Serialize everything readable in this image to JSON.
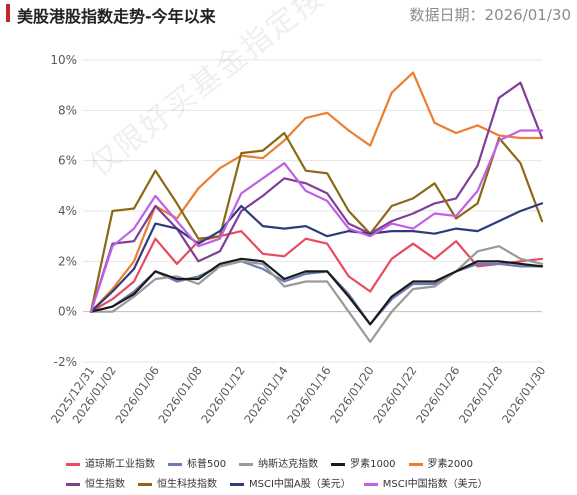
{
  "header": {
    "title": "美股港股指数走势-今年以来",
    "date_label": "数据日期：",
    "date_value": "2026/01/30"
  },
  "watermark": "仅限好买基金指定接收人使用",
  "chart_data": {
    "type": "line",
    "title": "美股港股指数走势-今年以来",
    "xlabel": "",
    "ylabel": "",
    "x": [
      "2025/12/31",
      "2026/01/02",
      "2026/01/05",
      "2026/01/06",
      "2026/01/07",
      "2026/01/08",
      "2026/01/09",
      "2026/01/12",
      "2026/01/13",
      "2026/01/14",
      "2026/01/15",
      "2026/01/16",
      "2026/01/19",
      "2026/01/20",
      "2026/01/21",
      "2026/01/22",
      "2026/01/23",
      "2026/01/26",
      "2026/01/27",
      "2026/01/28",
      "2026/01/29",
      "2026/01/30"
    ],
    "x_tick_labels": [
      "2025/12/31",
      "2026/01/02",
      "2026/01/06",
      "2026/01/08",
      "2026/01/12",
      "2026/01/14",
      "2026/01/16",
      "2026/01/20",
      "2026/01/22",
      "2026/01/26",
      "2026/01/28",
      "2026/01/30"
    ],
    "ylim": [
      -2,
      10
    ],
    "y_ticks": [
      -2,
      0,
      2,
      4,
      6,
      8,
      10
    ],
    "y_tick_format": "percent",
    "grid": "horizontal",
    "legend_position": "bottom",
    "series": [
      {
        "name": "道琼斯工业指数",
        "color": "#e84a5f",
        "values": [
          0.0,
          0.5,
          1.2,
          2.9,
          1.9,
          2.8,
          3.0,
          3.2,
          2.3,
          2.2,
          2.9,
          2.7,
          1.4,
          0.8,
          2.1,
          2.7,
          2.1,
          2.8,
          1.8,
          1.9,
          2.0,
          2.1
        ]
      },
      {
        "name": "标普500",
        "color": "#6b7bb8",
        "values": [
          0.0,
          0.2,
          0.8,
          1.6,
          1.2,
          1.4,
          1.8,
          2.0,
          1.7,
          1.2,
          1.5,
          1.6,
          0.7,
          -0.5,
          0.5,
          1.1,
          1.1,
          1.6,
          1.9,
          1.9,
          1.8,
          1.8
        ]
      },
      {
        "name": "纳斯达克指数",
        "color": "#9a9a9a",
        "values": [
          0.0,
          0.0,
          0.6,
          1.3,
          1.4,
          1.1,
          1.8,
          2.0,
          1.9,
          1.0,
          1.2,
          1.2,
          0.0,
          -1.2,
          0.0,
          0.9,
          1.0,
          1.6,
          2.4,
          2.6,
          2.1,
          1.9
        ]
      },
      {
        "name": "罗素1000",
        "color": "#1a1a1a",
        "values": [
          0.0,
          0.2,
          0.7,
          1.6,
          1.3,
          1.3,
          1.9,
          2.1,
          2.0,
          1.3,
          1.6,
          1.6,
          0.6,
          -0.5,
          0.6,
          1.2,
          1.2,
          1.6,
          2.0,
          2.0,
          1.9,
          1.8
        ]
      },
      {
        "name": "罗素2000",
        "color": "#ed7d31",
        "values": [
          0.0,
          0.9,
          2.0,
          4.2,
          3.7,
          4.9,
          5.7,
          6.2,
          6.1,
          6.8,
          7.7,
          7.9,
          7.2,
          6.6,
          8.7,
          9.5,
          7.5,
          7.1,
          7.4,
          7.0,
          6.9,
          6.9
        ]
      },
      {
        "name": "恒生指数",
        "color": "#7f3f98",
        "values": [
          0.0,
          2.7,
          2.8,
          4.2,
          3.3,
          2.0,
          2.4,
          4.0,
          4.6,
          5.3,
          5.1,
          4.7,
          3.5,
          3.1,
          3.6,
          3.9,
          4.3,
          4.5,
          5.8,
          8.5,
          9.1,
          6.9
        ]
      },
      {
        "name": "恒生科技指数",
        "color": "#8b6914",
        "values": [
          0.0,
          4.0,
          4.1,
          5.6,
          4.3,
          2.9,
          3.0,
          6.3,
          6.4,
          7.1,
          5.6,
          5.5,
          4.0,
          3.1,
          4.2,
          4.5,
          5.1,
          3.7,
          4.3,
          6.9,
          5.9,
          3.6
        ]
      },
      {
        "name": "MSCI中国A股（美元）",
        "color": "#2e3b7d",
        "values": [
          0.0,
          0.8,
          1.7,
          3.5,
          3.3,
          2.7,
          3.2,
          4.2,
          3.4,
          3.3,
          3.4,
          3.0,
          3.2,
          3.1,
          3.2,
          3.2,
          3.1,
          3.3,
          3.2,
          3.6,
          4.0,
          4.3
        ]
      },
      {
        "name": "MSCI中国指数（美元）",
        "color": "#c060e6",
        "values": [
          0.0,
          2.6,
          3.3,
          4.6,
          3.6,
          2.6,
          2.9,
          4.7,
          5.3,
          5.9,
          4.8,
          4.4,
          3.3,
          3.0,
          3.5,
          3.3,
          3.9,
          3.8,
          4.8,
          6.8,
          7.2,
          7.2
        ]
      }
    ]
  }
}
